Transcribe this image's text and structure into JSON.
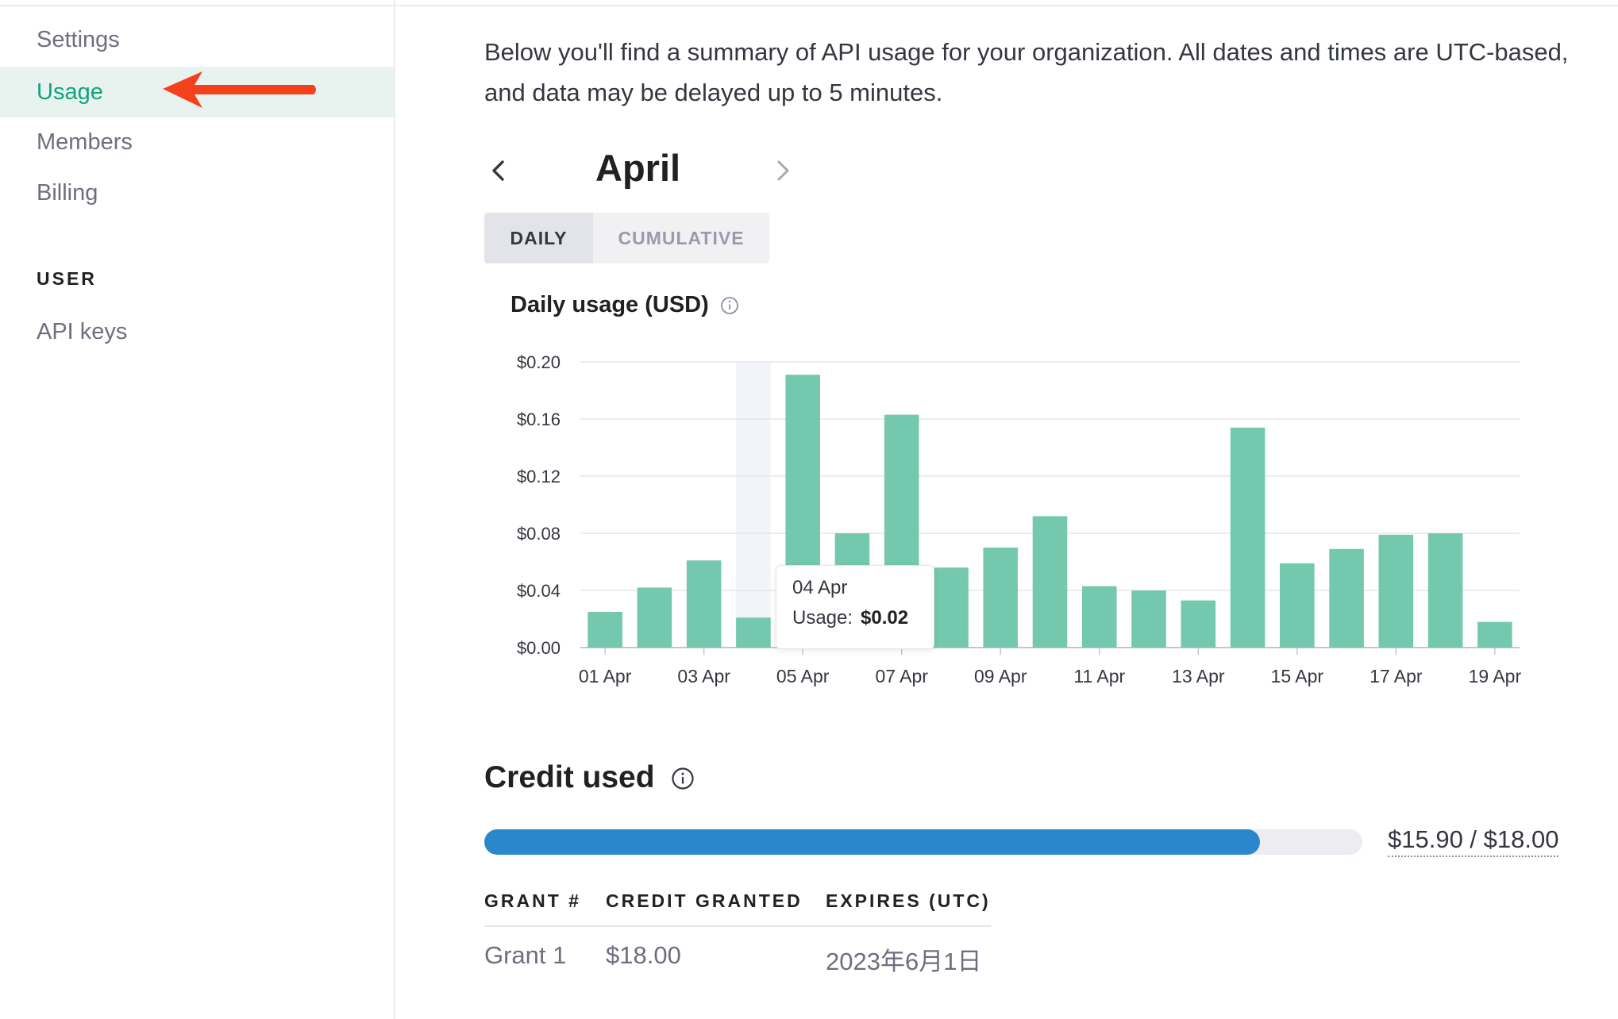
{
  "sidebar": {
    "items": [
      {
        "label": "Settings",
        "active": false
      },
      {
        "label": "Usage",
        "active": true
      },
      {
        "label": "Members",
        "active": false
      },
      {
        "label": "Billing",
        "active": false
      }
    ],
    "user_section": {
      "title": "USER",
      "items": [
        {
          "label": "API keys"
        }
      ]
    }
  },
  "main": {
    "intro": "Below you'll find a summary of API usage for your organization. All dates and times are UTC-based, and data may be delayed up to 5 minutes.",
    "month": "April",
    "view_tabs": [
      {
        "label": "DAILY",
        "selected": true
      },
      {
        "label": "CUMULATIVE",
        "selected": false
      }
    ],
    "chart_title": "Daily usage (USD)",
    "tooltip": {
      "date": "04 Apr",
      "label": "Usage:",
      "value": "$0.02"
    },
    "credit": {
      "title": "Credit used",
      "used": 15.9,
      "total": 18.0,
      "display": "$15.90 / $18.00"
    },
    "grants_table": {
      "headers": [
        "GRANT #",
        "CREDIT GRANTED",
        "EXPIRES (UTC)"
      ],
      "rows": [
        [
          "Grant 1",
          "$18.00",
          "2023年6月1日"
        ]
      ]
    }
  },
  "colors": {
    "accent": "#10a37f",
    "bar": "#74c8ae",
    "progress": "#2a87cc",
    "arrow": "#f5401c"
  },
  "chart_data": {
    "type": "bar",
    "title": "Daily usage (USD)",
    "categories": [
      "01 Apr",
      "02 Apr",
      "03 Apr",
      "04 Apr",
      "05 Apr",
      "06 Apr",
      "07 Apr",
      "08 Apr",
      "09 Apr",
      "10 Apr",
      "11 Apr",
      "12 Apr",
      "13 Apr",
      "14 Apr",
      "15 Apr",
      "16 Apr",
      "17 Apr",
      "18 Apr",
      "19 Apr"
    ],
    "values": [
      0.025,
      0.042,
      0.061,
      0.021,
      0.191,
      0.08,
      0.163,
      0.056,
      0.07,
      0.092,
      0.043,
      0.04,
      0.033,
      0.154,
      0.059,
      0.069,
      0.079,
      0.08,
      0.018
    ],
    "x_tick_labels": [
      "01 Apr",
      "03 Apr",
      "05 Apr",
      "07 Apr",
      "09 Apr",
      "11 Apr",
      "13 Apr",
      "15 Apr",
      "17 Apr",
      "19 Apr"
    ],
    "y_tick_labels": [
      "$0.20",
      "$0.16",
      "$0.12",
      "$0.08",
      "$0.04",
      "$0.00"
    ],
    "y_ticks": [
      0.2,
      0.16,
      0.12,
      0.08,
      0.04,
      0.0
    ],
    "ylim": [
      0,
      0.2
    ],
    "highlighted_category": "04 Apr",
    "grid": true
  }
}
